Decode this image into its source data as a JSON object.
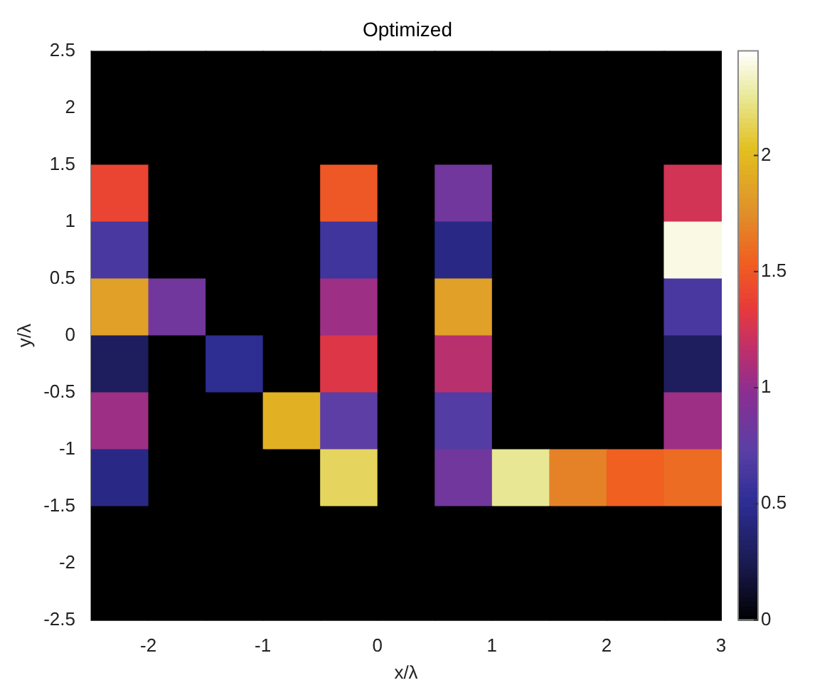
{
  "chart_data": {
    "type": "heatmap",
    "title": "Optimized",
    "xlabel": "x/λ",
    "ylabel": "y/λ",
    "x": [
      -2.25,
      -1.75,
      -1.25,
      -0.75,
      -0.25,
      0.25,
      0.75,
      1.25,
      1.75,
      2.25,
      2.75
    ],
    "y": [
      2.25,
      1.75,
      1.25,
      0.75,
      0.25,
      -0.25,
      -0.75,
      -1.25,
      -1.75,
      -2.25
    ],
    "xlim": [
      -2.5,
      3
    ],
    "xticks": [
      -2,
      -1,
      0,
      1,
      2,
      3
    ],
    "ylim": [
      -2.5,
      2.5
    ],
    "yticks": [
      -2.5,
      -2,
      -1.5,
      -1,
      -0.5,
      0,
      0.5,
      1,
      1.5,
      2,
      2.5
    ],
    "clim": [
      0,
      2.45
    ],
    "cticks": [
      0,
      0.5,
      1,
      1.5,
      2
    ],
    "cells": [
      [
        0,
        0,
        0,
        0,
        0,
        0,
        0,
        0,
        0,
        0,
        0
      ],
      [
        0,
        0,
        0,
        0,
        0,
        0,
        0,
        0,
        0,
        0,
        0
      ],
      [
        1.4,
        0,
        0,
        0,
        1.5,
        0,
        0.85,
        0,
        0,
        0,
        1.25
      ],
      [
        0.65,
        0,
        0,
        0,
        0.6,
        0,
        0.45,
        0,
        0,
        0,
        2.4
      ],
      [
        1.85,
        0.85,
        0,
        0,
        1.05,
        0,
        1.85,
        0,
        0,
        0,
        0.65
      ],
      [
        0.3,
        0,
        0.5,
        0,
        1.3,
        0,
        1.15,
        0,
        0,
        0,
        0.3
      ],
      [
        1.05,
        0,
        0,
        1.95,
        0.75,
        0,
        0.7,
        0,
        0,
        0,
        1.05
      ],
      [
        0.45,
        0,
        0,
        0,
        2.15,
        0,
        0.85,
        2.25,
        1.7,
        1.55,
        1.6
      ],
      [
        0,
        0,
        0,
        0,
        0,
        0,
        0,
        0,
        0,
        0,
        0
      ],
      [
        0,
        0,
        0,
        0,
        0,
        0,
        0,
        0,
        0,
        0,
        0
      ]
    ]
  }
}
